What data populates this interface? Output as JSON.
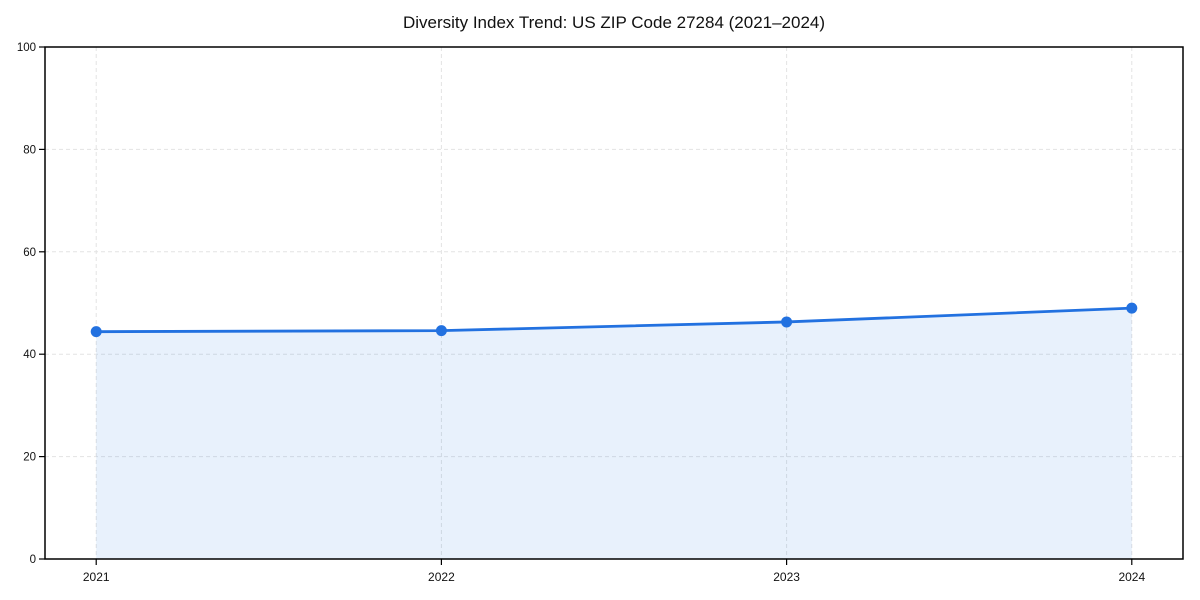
{
  "chart_data": {
    "type": "area",
    "title": "Diversity Index Trend: US ZIP Code 27284 (2021–2024)",
    "x": [
      "2021",
      "2022",
      "2023",
      "2024"
    ],
    "values": [
      44.4,
      44.6,
      46.3,
      49.0
    ],
    "xlabel": "",
    "ylabel": "",
    "ylim": [
      0,
      100
    ],
    "yticks": [
      0,
      20,
      40,
      60,
      80,
      100
    ],
    "grid": "dashed, both axes",
    "legend_position": "none",
    "marker": "circle",
    "colors": {
      "line": "#2271e0",
      "marker": "#2271e0",
      "area_fill": "#2271e0",
      "gridline": "#e3e3e3",
      "axis": "#000000",
      "background": "#ffffff",
      "text": "#111111"
    },
    "area_fill_opacity": 0.1
  }
}
